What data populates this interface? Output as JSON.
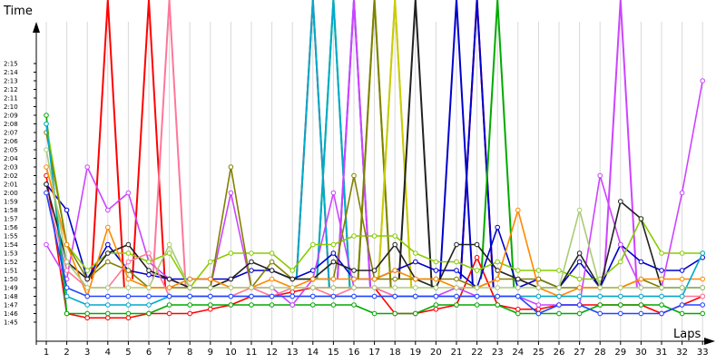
{
  "chart_data": {
    "type": "line",
    "ylabel": "Time",
    "xlabel": "Laps",
    "x": [
      1,
      2,
      3,
      4,
      5,
      6,
      7,
      8,
      9,
      10,
      11,
      12,
      13,
      14,
      15,
      16,
      17,
      18,
      19,
      20,
      21,
      22,
      23,
      24,
      25,
      26,
      27,
      28,
      29,
      30,
      31,
      32,
      33
    ],
    "y_tick_labels": [
      "1:45",
      "1:46",
      "1:47",
      "1:48",
      "1:49",
      "1:50",
      "1:51",
      "1:52",
      "1:53",
      "1:54",
      "1:55",
      "1:56",
      "1:57",
      "1:58",
      "1:59",
      "2:00",
      "2:01",
      "2:02",
      "2:03",
      "2:04",
      "2:05",
      "2:06",
      "2:07",
      "2:08",
      "2:09",
      "2:10",
      "2:11",
      "2:12",
      "2:13",
      "2:14",
      "2:15"
    ],
    "ylim_seconds": [
      104,
      138
    ],
    "grid": "vertical",
    "legend": "none",
    "series": [
      {
        "color": "#ff0000",
        "values": [
          122,
          106,
          105.5,
          105.5,
          105.5,
          106,
          106,
          106,
          106.5,
          107,
          108,
          108,
          108.5,
          109,
          109,
          109,
          109,
          106,
          106,
          106.5,
          107,
          112.5,
          107,
          106.5,
          106.5,
          107,
          107,
          107,
          107,
          107,
          106,
          107,
          108
        ]
      },
      {
        "color": "#0000cc",
        "values": [
          121,
          118,
          110,
          114,
          111,
          110.5,
          110,
          110,
          110,
          110,
          111,
          111,
          110,
          111,
          113,
          110,
          110,
          111,
          112,
          111,
          111,
          109,
          116,
          109,
          110,
          109,
          112,
          109,
          114,
          112,
          111,
          111,
          112.5
        ]
      },
      {
        "color": "#00aa00",
        "values": [
          129,
          106,
          106,
          106,
          106,
          106,
          107,
          107,
          107,
          107,
          107,
          107,
          107,
          107,
          107,
          107,
          106,
          106,
          106,
          107,
          107,
          107,
          107,
          106,
          106,
          106,
          106,
          107,
          107,
          107,
          107,
          106,
          106
        ]
      },
      {
        "color": "#cc44ff",
        "values": [
          114,
          110,
          123,
          118,
          120,
          112,
          110,
          109,
          109,
          120,
          109,
          109,
          107,
          110,
          120,
          109,
          109,
          108,
          108,
          108,
          109,
          108,
          108,
          108,
          107,
          107,
          107,
          122,
          114,
          109,
          109,
          120,
          133
        ]
      },
      {
        "color": "#88cc00",
        "values": [
          128,
          114,
          111,
          113,
          113,
          112,
          113,
          109,
          112,
          113,
          113,
          113,
          111,
          114,
          114,
          115,
          115,
          115,
          113,
          112,
          112,
          111,
          112,
          111,
          111,
          111,
          110,
          110,
          112,
          117,
          113,
          113,
          113
        ]
      },
      {
        "color": "#808000",
        "values": [
          127,
          114,
          110,
          112,
          111,
          109,
          109,
          109,
          109,
          123,
          109,
          112,
          110,
          110,
          110,
          122,
          110,
          110,
          110,
          110,
          110,
          109,
          110,
          110,
          110,
          109,
          109,
          109,
          109,
          110,
          109,
          109,
          109
        ]
      },
      {
        "color": "#222222",
        "values": [
          121,
          112,
          110,
          113,
          114,
          111,
          110,
          109,
          109,
          110,
          112,
          111,
          110,
          110,
          112,
          111,
          111,
          114,
          110,
          109,
          114,
          114,
          111,
          110,
          109,
          109,
          113,
          109,
          119,
          117,
          109,
          109,
          109
        ]
      },
      {
        "color": "#ff8800",
        "values": [
          123,
          114,
          108,
          116,
          110,
          109,
          109,
          110,
          110,
          109,
          109,
          110,
          109,
          110,
          110,
          110,
          110,
          111,
          110,
          110,
          109,
          109,
          110,
          118,
          109,
          108,
          109,
          109,
          109,
          110,
          110,
          110,
          110
        ]
      },
      {
        "color": "#ff7799",
        "values": [
          120,
          111,
          109,
          109,
          112,
          113,
          108,
          108,
          108,
          108,
          109,
          108,
          109,
          109,
          108,
          109,
          109,
          108,
          108,
          108,
          108,
          108,
          108,
          108,
          108,
          108,
          108,
          108,
          108,
          108,
          108,
          108,
          108
        ]
      },
      {
        "color": "#00aacc",
        "values": [
          128,
          108,
          107,
          107,
          107,
          107,
          108,
          108,
          108,
          108,
          108,
          108,
          108,
          108,
          108,
          108,
          108,
          108,
          108,
          108,
          108,
          108,
          108,
          108,
          108,
          108,
          108,
          108,
          108,
          108,
          108,
          108,
          113
        ]
      },
      {
        "color": "#aacc77",
        "values": [
          125,
          112,
          109,
          109,
          109,
          109,
          114,
          109,
          109,
          109,
          109,
          109,
          109,
          109,
          109,
          109,
          109,
          109,
          109,
          109,
          109,
          109,
          109,
          109,
          109,
          109,
          118,
          109,
          109,
          109,
          109,
          109,
          109
        ]
      },
      {
        "color": "#2244ff",
        "values": [
          120,
          109,
          108,
          108,
          108,
          108,
          108,
          108,
          108,
          108,
          108,
          108,
          108,
          108,
          108,
          108,
          108,
          108,
          108,
          108,
          108,
          108,
          108,
          108,
          106,
          107,
          107,
          106,
          106,
          106,
          106,
          107,
          107
        ]
      }
    ],
    "spikes": [
      {
        "color": "#ff0000",
        "x": 4
      },
      {
        "color": "#ff0000",
        "x": 6
      },
      {
        "color": "#ff7799",
        "x": 7
      },
      {
        "color": "#ff0000",
        "x": 14
      },
      {
        "color": "#00aacc",
        "x": 14
      },
      {
        "color": "#00aa00",
        "x": 15
      },
      {
        "color": "#00aacc",
        "x": 15
      },
      {
        "color": "#2244ff",
        "x": 16
      },
      {
        "color": "#cc44ff",
        "x": 16
      },
      {
        "color": "#88cc00",
        "x": 17
      },
      {
        "color": "#808000",
        "x": 17
      },
      {
        "color": "#aacc77",
        "x": 18
      },
      {
        "color": "#cccc00",
        "x": 18
      },
      {
        "color": "#222222",
        "x": 19
      },
      {
        "color": "#0000cc",
        "x": 21
      },
      {
        "color": "#ff0000",
        "x": 22
      },
      {
        "color": "#0000cc",
        "x": 22
      },
      {
        "color": "#00aa00",
        "x": 23
      },
      {
        "color": "#cc44ff",
        "x": 29
      }
    ]
  }
}
